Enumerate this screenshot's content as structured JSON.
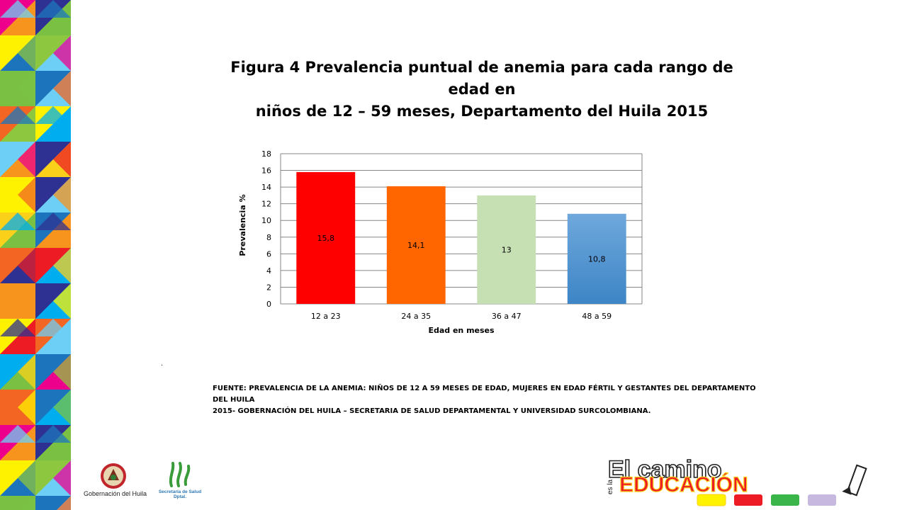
{
  "title": {
    "line1": "Figura 4 Prevalencia puntual de anemia para cada rango de edad en",
    "line2": "niños de 12 – 59 meses, Departamento del Huila 2015"
  },
  "chart_data": {
    "type": "bar",
    "categories": [
      "12 a 23",
      "24 a 35",
      "36 a 47",
      "48 a 59"
    ],
    "values": [
      15.8,
      14.1,
      13,
      10.8
    ],
    "data_labels": [
      "15,8",
      "14,1",
      "13",
      "10,8"
    ],
    "bar_colors": [
      "#ff0000",
      "#ff6600",
      "#c6e0b4",
      "#5b9bd5"
    ],
    "xlabel": "Edad en meses",
    "ylabel": "Prevalencia %",
    "ylim": [
      0,
      18
    ],
    "yticks": [
      0,
      2,
      4,
      6,
      8,
      10,
      12,
      14,
      16,
      18
    ],
    "grid": true,
    "legend": "none"
  },
  "separator_dot": ".",
  "source": {
    "line1": "FUENTE: PREVALENCIA  DE LA ANEMIA: NIÑOS DE 12 A 59 MESES DE EDAD, MUJERES EN EDAD FÉRTIL Y GESTANTES DEL DEPARTAMENTO DEL HUILA",
    "line2": "2015- GOBERNACIÓN DEL HUILA – SECRETARIA DE SALUD DEPARTAMENTAL Y UNIVERSIDAD SURCOLOMBIANA."
  },
  "footer": {
    "gobernacion_label": "Gobernación del Huila",
    "salud_label_line1": "Secretaría de Salud",
    "salud_label_line2": "Dptal.",
    "campaign_line1": "El camino",
    "campaign_small": "es la",
    "campaign_line2": "EDUCACIÓN"
  },
  "colors": {
    "mosaic": [
      "#f7941d",
      "#8dc63f",
      "#00aeef",
      "#fff200",
      "#ec008c",
      "#2e3192",
      "#7ac143",
      "#ed1c24",
      "#6dcff6",
      "#f26522",
      "#fbd01a",
      "#1c75bc"
    ]
  }
}
